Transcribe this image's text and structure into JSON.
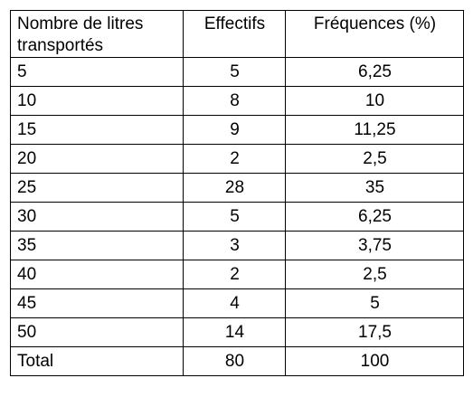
{
  "table": {
    "headers": [
      "Nombre de litres transportés",
      "Effectifs",
      "Fréquences (%)"
    ],
    "rows": [
      [
        "5",
        "5",
        "6,25"
      ],
      [
        "10",
        "8",
        "10"
      ],
      [
        "15",
        "9",
        "11,25"
      ],
      [
        "20",
        "2",
        "2,5"
      ],
      [
        "25",
        "28",
        "35"
      ],
      [
        "30",
        "5",
        "6,25"
      ],
      [
        "35",
        "3",
        "3,75"
      ],
      [
        "40",
        "2",
        "2,5"
      ],
      [
        "45",
        "4",
        "5"
      ],
      [
        "50",
        "14",
        "17,5"
      ],
      [
        "Total",
        "80",
        "100"
      ]
    ]
  }
}
